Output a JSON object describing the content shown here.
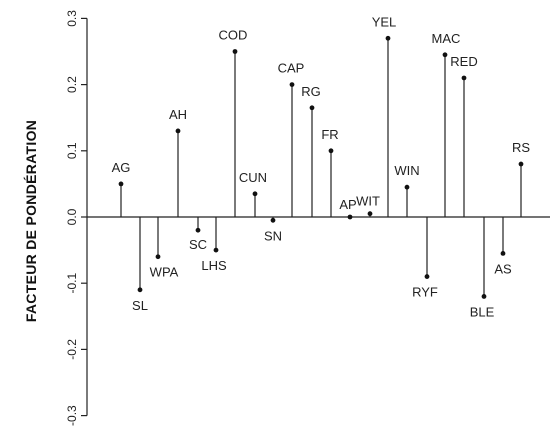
{
  "chart_data": {
    "type": "lollipop",
    "ylabel": "FACTEUR DE PONDÉRATION",
    "ylim": [
      -0.32,
      0.32
    ],
    "yticks": [
      -0.3,
      -0.2,
      -0.1,
      0.0,
      0.1,
      0.2,
      0.3
    ],
    "ytick_labels": [
      "-0.3",
      "-0.2",
      "-0.1",
      "0.0",
      "0.1",
      "0.2",
      "0.3"
    ],
    "reference_line": 0,
    "categories": [
      "AG",
      "SL",
      "WPA",
      "AH",
      "SC",
      "LHS",
      "COD",
      "CUN",
      "SN",
      "CAP",
      "RG",
      "FR",
      "AP",
      "WIT",
      "YEL",
      "WIN",
      "RYF",
      "MAC",
      "RED",
      "BLE",
      "AS",
      "RS"
    ],
    "values": [
      0.05,
      -0.11,
      -0.06,
      0.13,
      -0.02,
      -0.05,
      0.25,
      0.035,
      -0.005,
      0.2,
      0.165,
      0.1,
      0.0,
      0.005,
      0.27,
      0.045,
      -0.09,
      0.245,
      0.21,
      -0.12,
      -0.055,
      0.08
    ]
  }
}
